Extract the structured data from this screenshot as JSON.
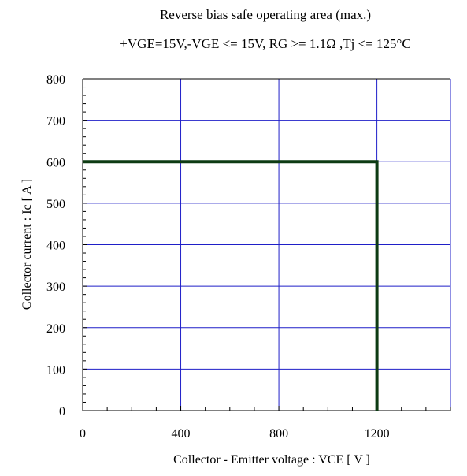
{
  "chart_data": {
    "type": "line",
    "title": "Reverse bias safe operating area (max.)",
    "subtitle": "+VGE=15V,-VGE <= 15V, RG >= 1.1Ω ,Tj <= 125°C",
    "xlabel": "Collector - Emitter voltage  :  VCE  [ V ]",
    "ylabel": "Collector current  : Ic  [ A ]",
    "xlim": [
      0,
      1500
    ],
    "ylim": [
      0,
      800
    ],
    "x_ticks": [
      0,
      400,
      800,
      1200
    ],
    "x_tick_labels": [
      "0",
      "400",
      "800",
      "1200"
    ],
    "y_ticks": [
      0,
      100,
      200,
      300,
      400,
      500,
      600,
      700,
      800
    ],
    "y_tick_labels": [
      "0",
      "100",
      "200",
      "300",
      "400",
      "500",
      "600",
      "700",
      "800"
    ],
    "x_minor_step": 100,
    "y_minor_step": 20,
    "grid": true,
    "colors": {
      "grid": "#1f1fc8",
      "series": "#0d3b13",
      "axis": "#000000"
    },
    "series": [
      {
        "points": [
          [
            0,
            600
          ],
          [
            1200,
            600
          ],
          [
            1200,
            0
          ]
        ]
      }
    ]
  }
}
